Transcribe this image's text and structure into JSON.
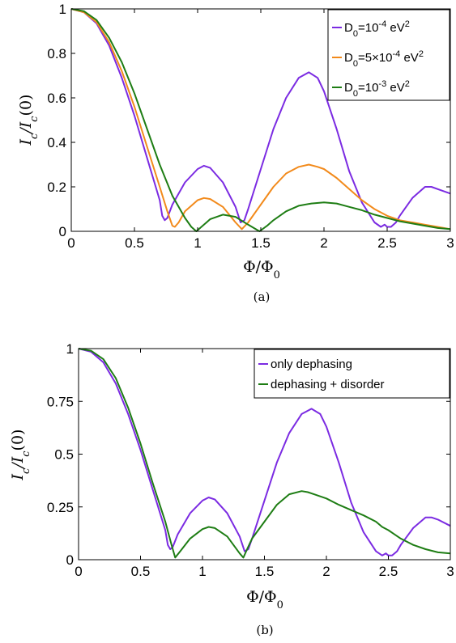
{
  "chart_data": [
    {
      "type": "line",
      "caption": "(a)",
      "xlabel": "Φ/Φ₀",
      "ylabel": "Ic/Ic(0)",
      "xlim": [
        0,
        3
      ],
      "ylim": [
        0,
        1
      ],
      "xticks": [
        "0",
        "0.5",
        "1",
        "1.5",
        "2",
        "2.5",
        "3"
      ],
      "yticks": [
        "0",
        "0.2",
        "0.4",
        "0.6",
        "0.8",
        "1"
      ],
      "legend_position": "top-right",
      "grid": false,
      "series": [
        {
          "name": "D0=10^-4 eV^2",
          "color": "#7b2be2",
          "points": [
            [
              0,
              1.0
            ],
            [
              0.1,
              0.985
            ],
            [
              0.2,
              0.935
            ],
            [
              0.3,
              0.835
            ],
            [
              0.4,
              0.69
            ],
            [
              0.5,
              0.52
            ],
            [
              0.6,
              0.33
            ],
            [
              0.7,
              0.14
            ],
            [
              0.72,
              0.07
            ],
            [
              0.74,
              0.05
            ],
            [
              0.76,
              0.06
            ],
            [
              0.8,
              0.12
            ],
            [
              0.9,
              0.22
            ],
            [
              1.0,
              0.28
            ],
            [
              1.05,
              0.295
            ],
            [
              1.1,
              0.285
            ],
            [
              1.2,
              0.22
            ],
            [
              1.3,
              0.11
            ],
            [
              1.34,
              0.04
            ],
            [
              1.37,
              0.05
            ],
            [
              1.4,
              0.1
            ],
            [
              1.5,
              0.28
            ],
            [
              1.6,
              0.46
            ],
            [
              1.7,
              0.6
            ],
            [
              1.8,
              0.69
            ],
            [
              1.88,
              0.715
            ],
            [
              1.95,
              0.69
            ],
            [
              2.0,
              0.63
            ],
            [
              2.1,
              0.46
            ],
            [
              2.2,
              0.27
            ],
            [
              2.3,
              0.13
            ],
            [
              2.4,
              0.04
            ],
            [
              2.45,
              0.02
            ],
            [
              2.48,
              0.03
            ],
            [
              2.5,
              0.02
            ],
            [
              2.53,
              0.02
            ],
            [
              2.57,
              0.04
            ],
            [
              2.6,
              0.07
            ],
            [
              2.7,
              0.15
            ],
            [
              2.8,
              0.2
            ],
            [
              2.85,
              0.2
            ],
            [
              2.9,
              0.19
            ],
            [
              3.0,
              0.17
            ]
          ]
        },
        {
          "name": "D0=5×10^-4 eV^2",
          "color": "#f28a1b",
          "points": [
            [
              0,
              1.0
            ],
            [
              0.1,
              0.985
            ],
            [
              0.2,
              0.94
            ],
            [
              0.3,
              0.85
            ],
            [
              0.4,
              0.72
            ],
            [
              0.5,
              0.56
            ],
            [
              0.6,
              0.38
            ],
            [
              0.7,
              0.2
            ],
            [
              0.76,
              0.09
            ],
            [
              0.8,
              0.025
            ],
            [
              0.82,
              0.02
            ],
            [
              0.85,
              0.04
            ],
            [
              0.9,
              0.09
            ],
            [
              1.0,
              0.14
            ],
            [
              1.05,
              0.15
            ],
            [
              1.1,
              0.145
            ],
            [
              1.2,
              0.11
            ],
            [
              1.3,
              0.04
            ],
            [
              1.35,
              0.01
            ],
            [
              1.4,
              0.04
            ],
            [
              1.5,
              0.12
            ],
            [
              1.6,
              0.2
            ],
            [
              1.7,
              0.26
            ],
            [
              1.8,
              0.29
            ],
            [
              1.88,
              0.3
            ],
            [
              1.95,
              0.29
            ],
            [
              2.0,
              0.28
            ],
            [
              2.1,
              0.24
            ],
            [
              2.2,
              0.19
            ],
            [
              2.3,
              0.14
            ],
            [
              2.4,
              0.1
            ],
            [
              2.5,
              0.07
            ],
            [
              2.6,
              0.05
            ],
            [
              2.7,
              0.04
            ],
            [
              2.8,
              0.03
            ],
            [
              2.9,
              0.02
            ],
            [
              3.0,
              0.01
            ]
          ]
        },
        {
          "name": "D0=10^-3 eV^2",
          "color": "#1e7d14",
          "points": [
            [
              0,
              1.0
            ],
            [
              0.1,
              0.99
            ],
            [
              0.2,
              0.95
            ],
            [
              0.3,
              0.87
            ],
            [
              0.4,
              0.76
            ],
            [
              0.5,
              0.62
            ],
            [
              0.6,
              0.46
            ],
            [
              0.7,
              0.3
            ],
            [
              0.8,
              0.16
            ],
            [
              0.9,
              0.06
            ],
            [
              0.95,
              0.02
            ],
            [
              0.99,
              0.0
            ],
            [
              1.05,
              0.03
            ],
            [
              1.1,
              0.055
            ],
            [
              1.2,
              0.075
            ],
            [
              1.3,
              0.065
            ],
            [
              1.4,
              0.03
            ],
            [
              1.49,
              0.0
            ],
            [
              1.55,
              0.025
            ],
            [
              1.6,
              0.05
            ],
            [
              1.7,
              0.09
            ],
            [
              1.8,
              0.115
            ],
            [
              1.9,
              0.125
            ],
            [
              2.0,
              0.13
            ],
            [
              2.1,
              0.125
            ],
            [
              2.2,
              0.11
            ],
            [
              2.3,
              0.095
            ],
            [
              2.4,
              0.075
            ],
            [
              2.5,
              0.06
            ],
            [
              2.6,
              0.045
            ],
            [
              2.7,
              0.035
            ],
            [
              2.8,
              0.025
            ],
            [
              2.9,
              0.015
            ],
            [
              3.0,
              0.01
            ]
          ]
        }
      ]
    },
    {
      "type": "line",
      "caption": "(b)",
      "xlabel": "Φ/Φ₀",
      "ylabel": "Ic/Ic(0)",
      "xlim": [
        0,
        3
      ],
      "ylim": [
        0,
        1
      ],
      "xticks": [
        "0",
        "0.5",
        "1",
        "1.5",
        "2",
        "2.5",
        "3"
      ],
      "yticks": [
        "0",
        "0.25",
        "0.5",
        "0.75",
        "1"
      ],
      "legend_position": "top-right",
      "grid": false,
      "series": [
        {
          "name": "only dephasing",
          "color": "#7b2be2",
          "points": [
            [
              0,
              1.0
            ],
            [
              0.1,
              0.985
            ],
            [
              0.2,
              0.935
            ],
            [
              0.3,
              0.835
            ],
            [
              0.4,
              0.69
            ],
            [
              0.5,
              0.52
            ],
            [
              0.6,
              0.33
            ],
            [
              0.7,
              0.14
            ],
            [
              0.72,
              0.07
            ],
            [
              0.74,
              0.05
            ],
            [
              0.76,
              0.06
            ],
            [
              0.8,
              0.12
            ],
            [
              0.9,
              0.22
            ],
            [
              1.0,
              0.28
            ],
            [
              1.05,
              0.295
            ],
            [
              1.1,
              0.285
            ],
            [
              1.2,
              0.22
            ],
            [
              1.3,
              0.11
            ],
            [
              1.34,
              0.04
            ],
            [
              1.37,
              0.05
            ],
            [
              1.4,
              0.1
            ],
            [
              1.5,
              0.28
            ],
            [
              1.6,
              0.46
            ],
            [
              1.7,
              0.6
            ],
            [
              1.8,
              0.69
            ],
            [
              1.88,
              0.715
            ],
            [
              1.95,
              0.69
            ],
            [
              2.0,
              0.63
            ],
            [
              2.1,
              0.46
            ],
            [
              2.2,
              0.27
            ],
            [
              2.3,
              0.13
            ],
            [
              2.4,
              0.04
            ],
            [
              2.45,
              0.02
            ],
            [
              2.48,
              0.03
            ],
            [
              2.5,
              0.02
            ],
            [
              2.53,
              0.02
            ],
            [
              2.57,
              0.04
            ],
            [
              2.6,
              0.07
            ],
            [
              2.7,
              0.15
            ],
            [
              2.8,
              0.2
            ],
            [
              2.85,
              0.2
            ],
            [
              2.9,
              0.19
            ],
            [
              3.0,
              0.16
            ]
          ]
        },
        {
          "name": "dephasing + disorder",
          "color": "#1e7d14",
          "points": [
            [
              0,
              1.0
            ],
            [
              0.1,
              0.99
            ],
            [
              0.2,
              0.95
            ],
            [
              0.3,
              0.86
            ],
            [
              0.4,
              0.72
            ],
            [
              0.5,
              0.55
            ],
            [
              0.6,
              0.36
            ],
            [
              0.7,
              0.18
            ],
            [
              0.75,
              0.07
            ],
            [
              0.78,
              0.01
            ],
            [
              0.82,
              0.04
            ],
            [
              0.9,
              0.1
            ],
            [
              1.0,
              0.145
            ],
            [
              1.05,
              0.155
            ],
            [
              1.1,
              0.15
            ],
            [
              1.2,
              0.11
            ],
            [
              1.3,
              0.03
            ],
            [
              1.33,
              0.01
            ],
            [
              1.36,
              0.05
            ],
            [
              1.4,
              0.1
            ],
            [
              1.5,
              0.18
            ],
            [
              1.6,
              0.26
            ],
            [
              1.7,
              0.31
            ],
            [
              1.8,
              0.325
            ],
            [
              1.85,
              0.32
            ],
            [
              1.9,
              0.31
            ],
            [
              2.0,
              0.29
            ],
            [
              2.1,
              0.26
            ],
            [
              2.2,
              0.235
            ],
            [
              2.3,
              0.21
            ],
            [
              2.4,
              0.18
            ],
            [
              2.45,
              0.155
            ],
            [
              2.5,
              0.14
            ],
            [
              2.55,
              0.12
            ],
            [
              2.6,
              0.1
            ],
            [
              2.7,
              0.07
            ],
            [
              2.8,
              0.05
            ],
            [
              2.9,
              0.035
            ],
            [
              3.0,
              0.03
            ]
          ]
        }
      ]
    }
  ]
}
